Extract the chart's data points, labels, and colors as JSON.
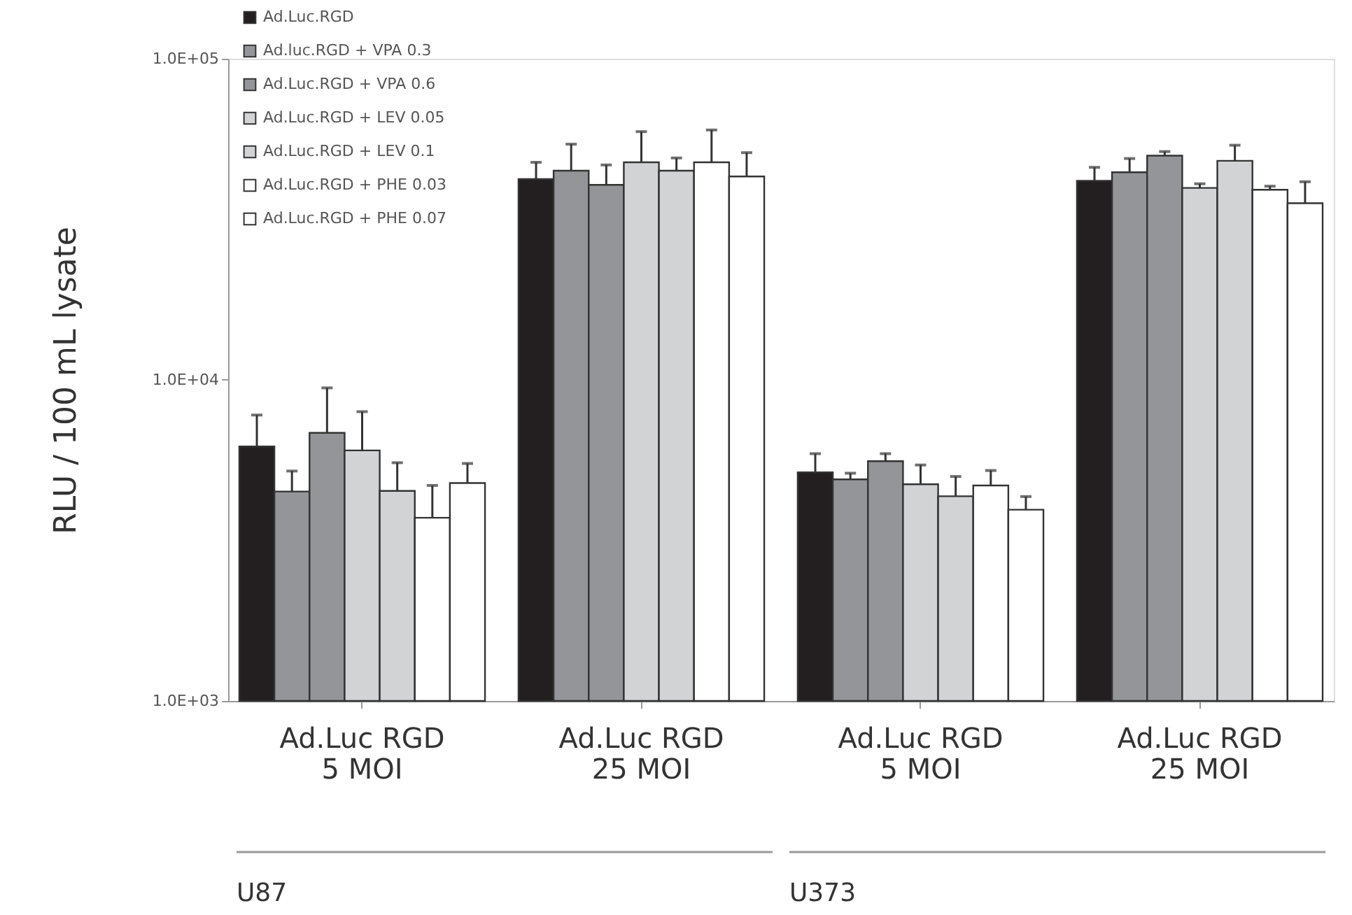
{
  "chart_data": {
    "type": "bar",
    "ylabel": "RLU / 100 mL lysate",
    "categories": [
      "Ad.Luc RGD\n5 MOI",
      "Ad.Luc RGD\n25 MOI",
      "Ad.Luc RGD\n5 MOI",
      "Ad.Luc RGD\n25 MOI"
    ],
    "series": [
      {
        "name": "Ad.Luc.RGD",
        "color": "#231f20",
        "values": [
          6200,
          42200,
          5150,
          41700
        ],
        "errors": [
          [
            6200,
            7770
          ],
          [
            42200,
            47600
          ],
          [
            5150,
            5890
          ],
          [
            41700,
            45900
          ]
        ]
      },
      {
        "name": "Ad.luc.RGD + VPA 0.3",
        "color": "#939598",
        "values": [
          4490,
          44800,
          4900,
          44300
        ],
        "errors": [
          [
            4490,
            5200
          ],
          [
            44800,
            54200
          ],
          [
            4900,
            5120
          ],
          [
            44300,
            48900
          ]
        ]
      },
      {
        "name": "Ad.Luc.RGD + VPA 0.6",
        "color": "#939598",
        "values": [
          6840,
          40500,
          5580,
          49900
        ],
        "errors": [
          [
            6840,
            9440
          ],
          [
            40500,
            46700
          ],
          [
            5580,
            5890
          ],
          [
            49900,
            51400
          ]
        ]
      },
      {
        "name": "Ad.Luc.RGD + LEV 0.05",
        "color": "#d1d3d4",
        "values": [
          6030,
          47600,
          4730,
          39600
        ],
        "errors": [
          [
            6030,
            7960
          ],
          [
            47600,
            59300
          ],
          [
            4730,
            5430
          ],
          [
            39600,
            40800
          ]
        ]
      },
      {
        "name": "Ad.Luc.RGD + LEV 0.1",
        "color": "#d1d3d4",
        "values": [
          4510,
          44800,
          4340,
          48100
        ],
        "errors": [
          [
            4510,
            5520
          ],
          [
            44800,
            49100
          ],
          [
            4340,
            5000
          ],
          [
            48100,
            53800
          ]
        ]
      },
      {
        "name": "Ad.Luc.RGD + PHE 0.03",
        "color": "#ffffff",
        "values": [
          3720,
          47600,
          4690,
          39100
        ],
        "errors": [
          [
            3720,
            4690
          ],
          [
            47600,
            60000
          ],
          [
            4690,
            5220
          ],
          [
            39100,
            40100
          ]
        ]
      },
      {
        "name": "Ad.Luc.RGD + PHE 0.07",
        "color": "#ffffff",
        "values": [
          4770,
          43000,
          3940,
          35500
        ],
        "errors": [
          [
            4770,
            5490
          ],
          [
            43000,
            51000
          ],
          [
            3940,
            4330
          ],
          [
            35500,
            41400
          ]
        ]
      }
    ],
    "ylim": [
      1000,
      100000
    ],
    "yticks": [
      {
        "value": 1000,
        "label": "1.0E+03"
      },
      {
        "value": 10000,
        "label": "1.0E+04"
      },
      {
        "value": 100000,
        "label": "1.0E+05"
      }
    ],
    "log": true,
    "grid": false,
    "legend": "top left",
    "annotations": [
      "U87",
      "U373"
    ]
  }
}
